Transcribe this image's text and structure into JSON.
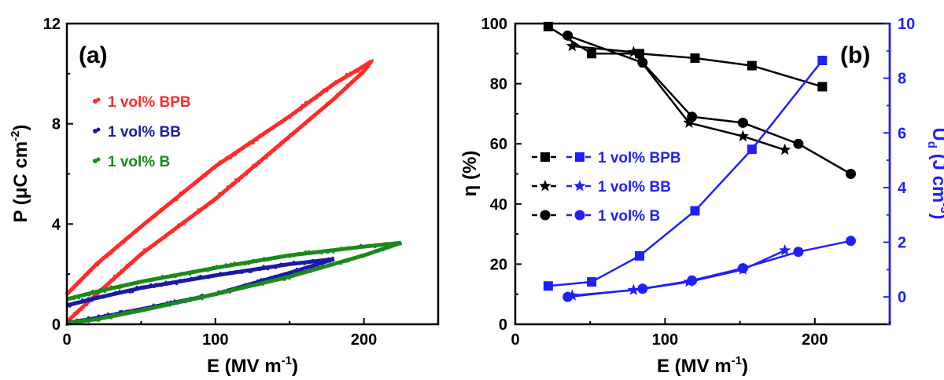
{
  "chart_data": [
    {
      "type": "line",
      "panel": "(a)",
      "xlabel": "E (MV m⁻¹)",
      "ylabel": "P (μC cm⁻²)",
      "xlim": [
        0,
        250
      ],
      "ylim": [
        0,
        12
      ],
      "xticks": [
        "0",
        "100",
        "200"
      ],
      "yticks": [
        "0",
        "4",
        "8",
        "12"
      ],
      "legend_position": "upper-left",
      "series": [
        {
          "name": "1 vol% BPB",
          "color": "#ff2a2a",
          "upper": {
            "x": [
              0,
              20,
              50,
              100,
              150,
              180,
              200,
              205
            ],
            "y": [
              1.2,
              2.4,
              3.9,
              6.3,
              8.3,
              9.6,
              10.3,
              10.5
            ]
          },
          "lower": {
            "x": [
              0,
              20,
              50,
              100,
              150,
              180,
              200,
              205
            ],
            "y": [
              0.1,
              1.2,
              2.8,
              5.0,
              7.5,
              9.0,
              10.1,
              10.5
            ]
          }
        },
        {
          "name": "1 vol% BB",
          "color": "#1a1aa8",
          "upper": {
            "x": [
              0,
              20,
              50,
              100,
              150,
              180
            ],
            "y": [
              0.75,
              1.05,
              1.45,
              1.95,
              2.4,
              2.6
            ]
          },
          "lower": {
            "x": [
              0,
              20,
              50,
              100,
              150,
              180
            ],
            "y": [
              0.05,
              0.25,
              0.6,
              1.2,
              2.05,
              2.6
            ]
          }
        },
        {
          "name": "1 vol% B",
          "color": "#1a8a1a",
          "upper": {
            "x": [
              0,
              20,
              50,
              100,
              150,
              200,
              225
            ],
            "y": [
              1.0,
              1.3,
              1.7,
              2.25,
              2.75,
              3.1,
              3.25
            ]
          },
          "lower": {
            "x": [
              0,
              20,
              50,
              100,
              150,
              200,
              225
            ],
            "y": [
              0.05,
              0.2,
              0.55,
              1.2,
              1.9,
              2.75,
              3.25
            ]
          }
        }
      ]
    },
    {
      "type": "line",
      "panel": "(b)",
      "xlabel": "E (MV m⁻¹)",
      "ylabel_left": "η (%)",
      "ylabel_right": "Uₐ (J cm⁻³)",
      "ylabel_right_text": "U",
      "ylabel_right_sub": "d",
      "ylabel_right_rest": " (J cm",
      "ylabel_right_sup": "-3",
      "ylabel_right_close": ")",
      "xlim": [
        0,
        250
      ],
      "ylim_left": [
        0,
        100
      ],
      "ylim_right": [
        -1,
        10
      ],
      "xticks": [
        "0",
        "100",
        "200"
      ],
      "yticks_left": [
        "0",
        "20",
        "40",
        "60",
        "80",
        "100"
      ],
      "yticks_right": [
        "0",
        "2",
        "4",
        "6",
        "8",
        "10"
      ],
      "legend_position": "center-left",
      "efficiency_color": "#000000",
      "energy_color": "#1f1fff",
      "series": [
        {
          "name": "1 vol% BPB",
          "marker": "square",
          "axis": "left",
          "quantity": "efficiency",
          "x": [
            22,
            51,
            83,
            120,
            158,
            205
          ],
          "y": [
            99,
            90,
            90,
            88.5,
            86,
            79
          ]
        },
        {
          "name": "1 vol% BB",
          "marker": "star",
          "axis": "left",
          "quantity": "efficiency",
          "x": [
            38,
            79,
            116,
            152,
            180
          ],
          "y": [
            92.5,
            90.5,
            67,
            62.5,
            58
          ]
        },
        {
          "name": "1 vol% B",
          "marker": "circle",
          "axis": "left",
          "quantity": "efficiency",
          "x": [
            35,
            85,
            118,
            152,
            189,
            224
          ],
          "y": [
            96,
            87,
            69,
            67,
            60,
            50
          ]
        },
        {
          "name": "1 vol% BPB",
          "marker": "square",
          "axis": "right",
          "quantity": "energy",
          "x": [
            22,
            51,
            83,
            120,
            158,
            205
          ],
          "y": [
            0.4,
            0.55,
            1.5,
            3.15,
            5.4,
            8.65
          ]
        },
        {
          "name": "1 vol% BB",
          "marker": "star",
          "axis": "right",
          "quantity": "energy",
          "x": [
            38,
            79,
            116,
            152,
            180
          ],
          "y": [
            0.05,
            0.25,
            0.55,
            1.0,
            1.7
          ]
        },
        {
          "name": "1 vol% B",
          "marker": "circle",
          "axis": "right",
          "quantity": "energy",
          "x": [
            35,
            85,
            118,
            152,
            189,
            224
          ],
          "y": [
            0.0,
            0.3,
            0.6,
            1.05,
            1.65,
            2.05
          ]
        }
      ]
    }
  ]
}
